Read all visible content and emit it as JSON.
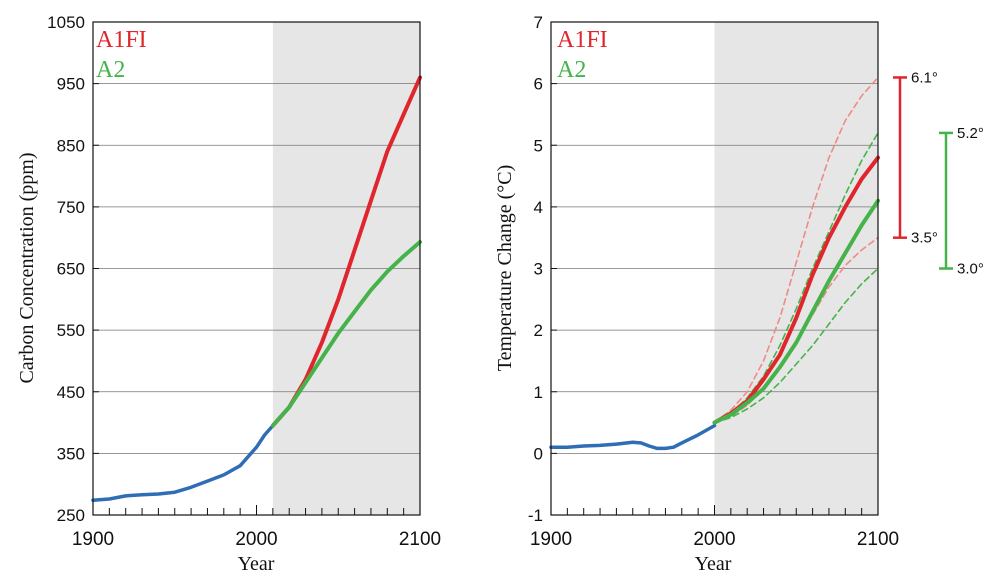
{
  "colors": {
    "history": "#2f6db5",
    "a1fi": "#e0262c",
    "a2": "#45b34a",
    "shade": "#e6e6e6",
    "grid": "#777777",
    "a1fi_dashed": "#ef8a86",
    "a2_dashed": "#45b34a"
  },
  "chart_data": [
    {
      "type": "line",
      "title": "",
      "xlabel": "Year",
      "ylabel": "Carbon Concentration (ppm)",
      "xlim": [
        1900,
        2100
      ],
      "ylim": [
        250,
        1050
      ],
      "xticks": [
        "1900",
        "2000",
        "2100"
      ],
      "yticks": [
        "250",
        "350",
        "450",
        "550",
        "650",
        "750",
        "850",
        "950",
        "1050"
      ],
      "projection_start": 2010,
      "grid": "horizontal",
      "legend": [
        "A1FI",
        "A2"
      ],
      "legend_placement": "top-left",
      "series": [
        {
          "key": "history",
          "x": [
            1900,
            1910,
            1920,
            1930,
            1940,
            1950,
            1960,
            1970,
            1980,
            1990,
            2000,
            2005,
            2010
          ],
          "y": [
            274,
            276,
            281,
            283,
            284,
            287,
            295,
            305,
            315,
            330,
            360,
            380,
            395
          ]
        },
        {
          "name": "A1FI",
          "key": "a1fi",
          "x": [
            2010,
            2020,
            2030,
            2040,
            2050,
            2060,
            2070,
            2080,
            2090,
            2100
          ],
          "y": [
            395,
            425,
            470,
            530,
            600,
            680,
            760,
            840,
            900,
            960
          ]
        },
        {
          "name": "A2",
          "key": "a2",
          "x": [
            2010,
            2020,
            2030,
            2040,
            2050,
            2060,
            2070,
            2080,
            2090,
            2100
          ],
          "y": [
            395,
            425,
            465,
            505,
            545,
            580,
            615,
            645,
            670,
            693
          ]
        }
      ]
    },
    {
      "type": "line",
      "title": "",
      "xlabel": "Year",
      "ylabel": "Temperature Change (°C)",
      "xlim": [
        1900,
        2100
      ],
      "ylim": [
        -1,
        7
      ],
      "xticks": [
        "1900",
        "2000",
        "2100"
      ],
      "yticks": [
        "-1",
        "0",
        "1",
        "2",
        "3",
        "4",
        "5",
        "6",
        "7"
      ],
      "projection_start": 2000,
      "grid": "horizontal",
      "legend": [
        "A1FI",
        "A2"
      ],
      "legend_placement": "top-left",
      "series": [
        {
          "key": "history",
          "x": [
            1900,
            1910,
            1920,
            1930,
            1940,
            1950,
            1955,
            1960,
            1965,
            1970,
            1975,
            1980,
            1990,
            2000
          ],
          "y": [
            0.1,
            0.1,
            0.12,
            0.13,
            0.15,
            0.18,
            0.17,
            0.12,
            0.08,
            0.08,
            0.1,
            0.17,
            0.3,
            0.45
          ]
        },
        {
          "name": "A1FI",
          "key": "a1fi",
          "x": [
            2000,
            2010,
            2020,
            2030,
            2040,
            2050,
            2060,
            2070,
            2080,
            2090,
            2100
          ],
          "y": [
            0.5,
            0.65,
            0.85,
            1.2,
            1.6,
            2.2,
            2.9,
            3.5,
            4.0,
            4.45,
            4.8
          ]
        },
        {
          "name": "A2",
          "key": "a2",
          "x": [
            2000,
            2010,
            2020,
            2030,
            2040,
            2050,
            2060,
            2070,
            2080,
            2090,
            2100
          ],
          "y": [
            0.5,
            0.63,
            0.82,
            1.05,
            1.4,
            1.8,
            2.3,
            2.8,
            3.25,
            3.7,
            4.1
          ]
        },
        {
          "key": "a1fi_high",
          "dashed": true,
          "x": [
            2000,
            2010,
            2020,
            2030,
            2040,
            2050,
            2060,
            2070,
            2080,
            2090,
            2100
          ],
          "y": [
            0.5,
            0.7,
            1.0,
            1.5,
            2.2,
            3.1,
            4.0,
            4.8,
            5.4,
            5.8,
            6.1
          ]
        },
        {
          "key": "a1fi_low",
          "dashed": true,
          "x": [
            2000,
            2010,
            2020,
            2030,
            2040,
            2050,
            2060,
            2070,
            2080,
            2090,
            2100
          ],
          "y": [
            0.5,
            0.6,
            0.78,
            1.05,
            1.4,
            1.8,
            2.25,
            2.7,
            3.05,
            3.3,
            3.5
          ]
        },
        {
          "key": "a2_high",
          "dashed": true,
          "x": [
            2000,
            2010,
            2020,
            2030,
            2040,
            2050,
            2060,
            2070,
            2080,
            2090,
            2100
          ],
          "y": [
            0.5,
            0.65,
            0.9,
            1.25,
            1.75,
            2.35,
            3.0,
            3.6,
            4.2,
            4.75,
            5.2
          ]
        },
        {
          "key": "a2_low",
          "dashed": true,
          "x": [
            2000,
            2010,
            2020,
            2030,
            2040,
            2050,
            2060,
            2070,
            2080,
            2090,
            2100
          ],
          "y": [
            0.5,
            0.58,
            0.72,
            0.9,
            1.15,
            1.45,
            1.75,
            2.1,
            2.45,
            2.75,
            3.0
          ]
        }
      ],
      "ranges": [
        {
          "name": "A1FI",
          "key": "a1fi",
          "high": 6.1,
          "low": 3.5,
          "high_label": "6.1°",
          "low_label": "3.5°"
        },
        {
          "name": "A2",
          "key": "a2",
          "high": 5.2,
          "low": 3.0,
          "high_label": "5.2°",
          "low_label": "3.0°"
        }
      ]
    }
  ]
}
